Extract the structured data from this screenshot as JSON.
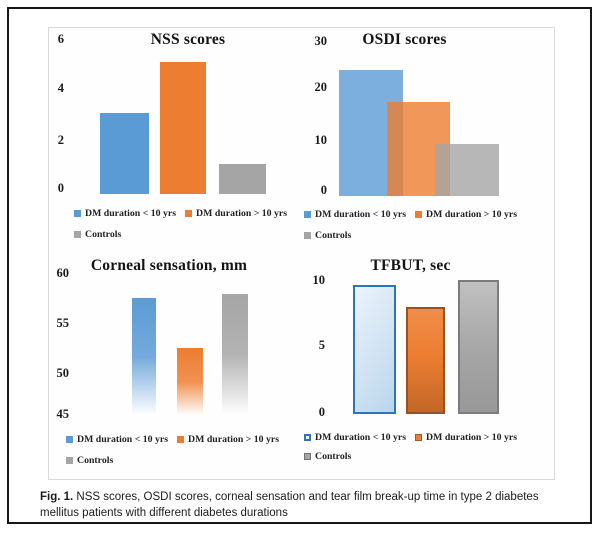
{
  "colors": {
    "blue": "#5B9BD5",
    "orange": "#ED7D31",
    "gray": "#A5A5A5",
    "tfbut_blue_border": "#2E75B6",
    "frame_border": "#161616",
    "panel_border": "#DADADA"
  },
  "chart_data": [
    {
      "type": "bar",
      "title": "NSS scores",
      "categories": [
        "DM duration < 10 yrs",
        "DM duration > 10 yrs",
        "Controls"
      ],
      "values": [
        3.2,
        5.2,
        1.2
      ],
      "ylim": [
        0,
        6
      ],
      "yticks": [
        6,
        4,
        2,
        0
      ],
      "xlabel": "",
      "ylabel": "",
      "grid": false,
      "legend_position": "bottom",
      "bar_style": "flat"
    },
    {
      "type": "bar",
      "title": "OSDI scores",
      "categories": [
        "DM duration < 10 yrs",
        "DM duration > 10 yrs",
        "Controls"
      ],
      "values": [
        24.5,
        18.3,
        10.2
      ],
      "ylim": [
        0,
        30
      ],
      "yticks": [
        30,
        20,
        10,
        0
      ],
      "xlabel": "",
      "ylabel": "",
      "grid": false,
      "legend_position": "bottom",
      "bar_style": "overlapping-translucent"
    },
    {
      "type": "bar",
      "title": "Corneal sensation, mm",
      "categories": [
        "DM duration < 10 yrs",
        "DM duration > 10 yrs",
        "Controls"
      ],
      "values": [
        57.4,
        52.1,
        57.9
      ],
      "ylim": [
        45,
        60
      ],
      "yticks": [
        60,
        55,
        50,
        45
      ],
      "xlabel": "",
      "ylabel": "",
      "grid": false,
      "legend_position": "bottom",
      "bar_style": "gradient-fade-to-bottom"
    },
    {
      "type": "bar",
      "title": "TFBUT, sec",
      "categories": [
        "DM duration < 10 yrs",
        "DM duration > 10 yrs",
        "Controls"
      ],
      "values": [
        9.9,
        8.2,
        10.3
      ],
      "ylim": [
        0,
        10
      ],
      "yticks": [
        10,
        5,
        0
      ],
      "xlabel": "",
      "ylabel": "",
      "grid": false,
      "legend_position": "bottom",
      "bar_style": "outlined-gradient"
    }
  ],
  "caption": {
    "label": "Fig. 1.",
    "text": " NSS scores, OSDI scores, corneal sensation and tear film break-up time in type 2 diabetes mellitus patients with different diabetes durations"
  }
}
